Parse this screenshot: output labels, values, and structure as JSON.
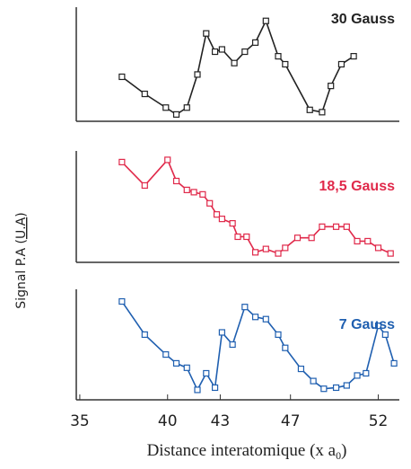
{
  "ylabel": {
    "text": "Signal P.A (",
    "underlined": "U.A",
    "end": ")"
  },
  "chart_data": [
    {
      "type": "line",
      "title": "30 Gauss",
      "color": "#222222",
      "xlim": [
        34.8,
        53.2
      ],
      "ylim": [
        0,
        10
      ],
      "x": [
        37.4,
        38.7,
        39.9,
        40.5,
        41.1,
        41.7,
        42.2,
        42.7,
        43.1,
        43.8,
        44.4,
        45.0,
        45.6,
        46.3,
        46.7,
        48.1,
        48.8,
        49.3,
        49.9,
        50.6
      ],
      "values": [
        3.9,
        2.4,
        1.2,
        0.6,
        1.2,
        4.1,
        7.7,
        6.1,
        6.3,
        5.1,
        6.1,
        6.9,
        8.8,
        5.7,
        5.0,
        1.0,
        0.8,
        3.1,
        5.0,
        5.7
      ]
    },
    {
      "type": "line",
      "title": "18,5 Gauss",
      "color": "#e0294a",
      "xlim": [
        34.8,
        53.2
      ],
      "ylim": [
        0,
        10
      ],
      "x": [
        37.4,
        38.7,
        40.0,
        40.5,
        41.1,
        41.5,
        42.0,
        42.4,
        42.8,
        43.1,
        43.7,
        44.0,
        44.5,
        45.0,
        45.6,
        46.3,
        46.7,
        47.4,
        48.2,
        48.8,
        49.6,
        50.2,
        50.8,
        51.4,
        52.0,
        52.7
      ],
      "values": [
        9.0,
        6.9,
        9.2,
        7.3,
        6.5,
        6.3,
        6.1,
        5.3,
        4.3,
        3.9,
        3.5,
        2.3,
        2.3,
        0.9,
        1.2,
        0.8,
        1.3,
        2.2,
        2.2,
        3.2,
        3.2,
        3.2,
        1.9,
        1.9,
        1.3,
        0.8
      ]
    },
    {
      "type": "line",
      "title": "7 Gauss",
      "color": "#1f5fb0",
      "xlim": [
        34.8,
        53.2
      ],
      "ylim": [
        0,
        10
      ],
      "x": [
        37.4,
        38.7,
        39.9,
        40.5,
        41.1,
        41.7,
        42.2,
        42.7,
        43.1,
        43.7,
        44.4,
        45.0,
        45.6,
        46.3,
        46.7,
        47.6,
        48.3,
        48.9,
        49.6,
        50.2,
        50.8,
        51.3,
        52.0,
        52.4,
        52.9
      ],
      "values": [
        8.9,
        5.9,
        4.1,
        3.3,
        2.9,
        0.9,
        2.4,
        1.1,
        6.1,
        5.0,
        8.4,
        7.5,
        7.3,
        5.9,
        4.7,
        2.8,
        1.7,
        1.0,
        1.1,
        1.3,
        2.2,
        2.4,
        6.7,
        5.9,
        3.3
      ],
      "xticks": [
        35,
        40,
        43,
        47,
        52
      ],
      "xlabel": {
        "text": "Distance interatomique (x a",
        "sub": "0",
        "end": ")"
      }
    }
  ]
}
